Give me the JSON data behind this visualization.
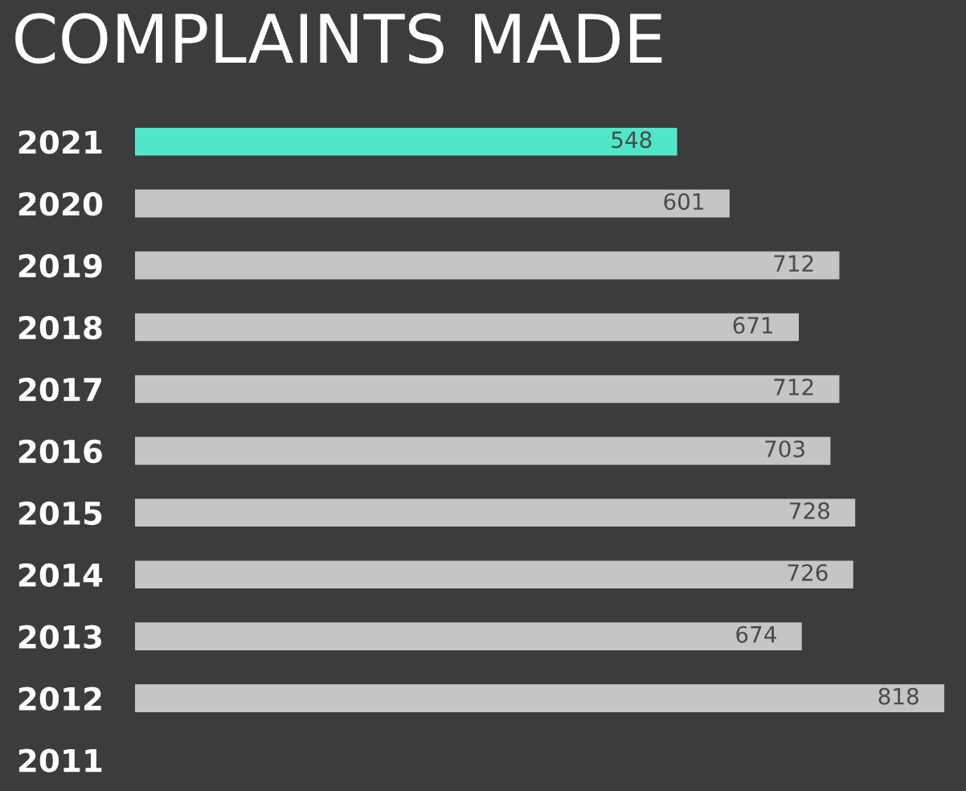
{
  "chart_data": {
    "type": "bar",
    "orientation": "horizontal",
    "title": "COMPLAINTS MADE",
    "categories": [
      "2021",
      "2020",
      "2019",
      "2018",
      "2017",
      "2016",
      "2015",
      "2014",
      "2013",
      "2012",
      "2011"
    ],
    "values": [
      548,
      601,
      712,
      671,
      712,
      703,
      728,
      726,
      674,
      818,
      null
    ],
    "value_labels": [
      "548",
      "601",
      "712",
      "671",
      "712",
      "703",
      "728",
      "726",
      "674",
      "818",
      null
    ],
    "colors": [
      "#52e5c9",
      "#c5c5c3",
      "#c5c5c3",
      "#c5c5c3",
      "#c5c5c3",
      "#c5c5c3",
      "#c5c5c3",
      "#c5c5c3",
      "#c5c5c3",
      "#c5c5c3",
      "#c5c5c3"
    ],
    "xlim": [
      0,
      840
    ],
    "tick_labels": "y",
    "grid": false,
    "legend": false
  }
}
